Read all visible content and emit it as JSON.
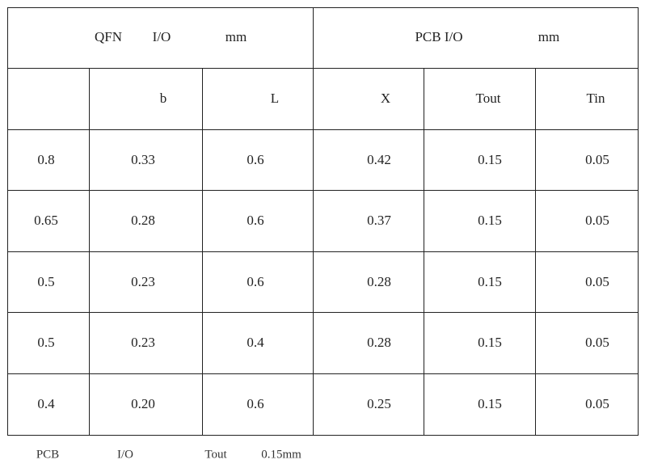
{
  "table": {
    "group_headers": [
      [
        "QFN",
        "I/O",
        "mm"
      ],
      [
        "PCB I/O",
        "mm"
      ]
    ],
    "columns": [
      "b",
      "L",
      "X",
      "Tout",
      "Tin"
    ],
    "rows": [
      [
        "0.8",
        "0.33",
        "0.6",
        "0.42",
        "0.15",
        "0.05"
      ],
      [
        "0.65",
        "0.28",
        "0.6",
        "0.37",
        "0.15",
        "0.05"
      ],
      [
        "0.5",
        "0.23",
        "0.6",
        "0.28",
        "0.15",
        "0.05"
      ],
      [
        "0.5",
        "0.23",
        "0.4",
        "0.28",
        "0.15",
        "0.05"
      ],
      [
        "0.4",
        "0.20",
        "0.6",
        "0.25",
        "0.15",
        "0.05"
      ]
    ]
  },
  "footnote": [
    "PCB",
    "I/O",
    "Tout",
    "0.15mm"
  ]
}
